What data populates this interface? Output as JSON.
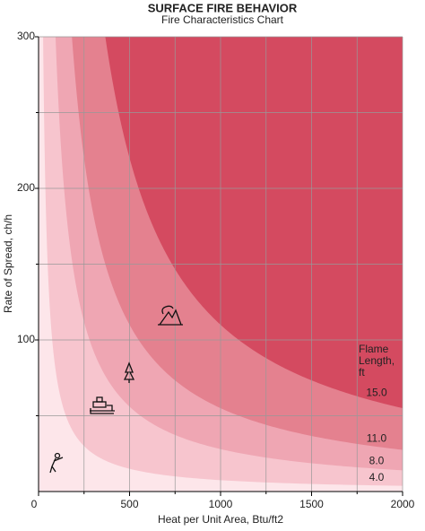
{
  "chart_data": {
    "type": "fire-characteristics",
    "title": "SURFACE FIRE BEHAVIOR",
    "subtitle": "Fire Characteristics Chart",
    "x_label": "Heat per Unit Area, Btu/ft2",
    "y_label": "Rate of Spread, ch/h",
    "xlim": [
      0,
      2000
    ],
    "ylim": [
      0,
      300
    ],
    "xticks": [
      0,
      500,
      1000,
      1500,
      2000
    ],
    "minor_xticks": [
      250,
      750,
      1250,
      1750
    ],
    "yticks": [
      100,
      200,
      300
    ],
    "minor_yticks": [
      50,
      150,
      250
    ],
    "grid": true,
    "background_color": "#fde6ea",
    "legend_title": [
      "Flame",
      "Length,",
      "ft"
    ],
    "series": [
      {
        "name": "4.0",
        "color": "#f7c5ce",
        "values": 7500
      },
      {
        "name": "8.0",
        "color": "#efa6b3",
        "values": 28000
      },
      {
        "name": "11.0",
        "color": "#e4818f",
        "values": 55000
      },
      {
        "name": "15.0",
        "color": "#d44a60",
        "values": 110000
      }
    ]
  }
}
